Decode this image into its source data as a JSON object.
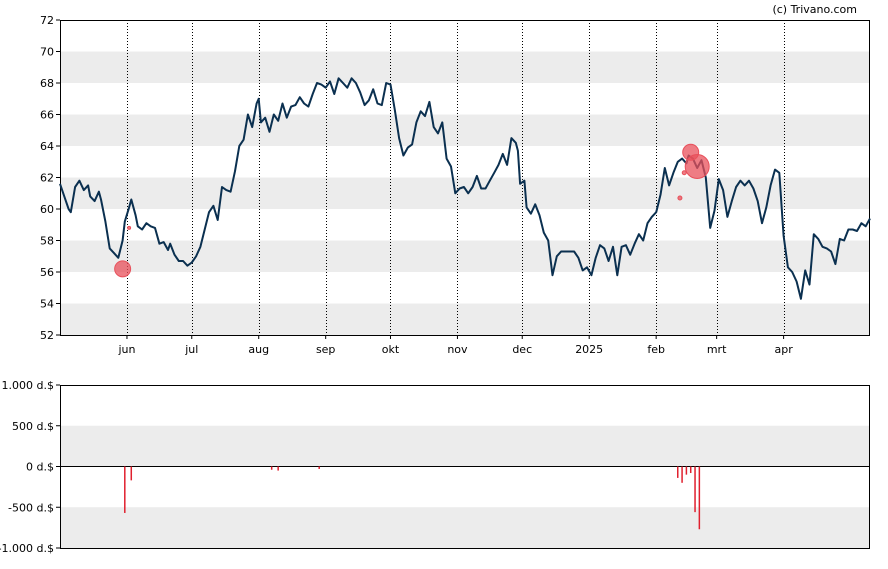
{
  "copyright": "(c) Trivano.com",
  "colors": {
    "price_line": "#0b3050",
    "band_grey": "#ececec",
    "bubble": "#e8505b",
    "volume_bar": "#e0202e"
  },
  "chart_data": [
    {
      "type": "line",
      "title": "",
      "xlabel": "",
      "ylabel": "",
      "ylim": [
        52,
        72
      ],
      "y_ticks": [
        "52",
        "54",
        "56",
        "58",
        "60",
        "62",
        "64",
        "66",
        "68",
        "70",
        "72"
      ],
      "x_ticks": [
        {
          "label": "jun",
          "day": 43
        },
        {
          "label": "jul",
          "day": 73
        },
        {
          "label": "aug",
          "day": 104
        },
        {
          "label": "sep",
          "day": 135
        },
        {
          "label": "okt",
          "day": 165
        },
        {
          "label": "nov",
          "day": 196
        },
        {
          "label": "dec",
          "day": 226
        },
        {
          "label": "2025",
          "day": 257
        },
        {
          "label": "feb",
          "day": 288
        },
        {
          "label": "mrt",
          "day": 316
        },
        {
          "label": "apr",
          "day": 347
        }
      ],
      "series": [
        {
          "points": [
            [
              12,
              61.6
            ],
            [
              14,
              60.8
            ],
            [
              16,
              60.0
            ],
            [
              17,
              59.8
            ],
            [
              19,
              61.4
            ],
            [
              21,
              61.8
            ],
            [
              23,
              61.2
            ],
            [
              25,
              61.5
            ],
            [
              26,
              60.8
            ],
            [
              28,
              60.5
            ],
            [
              30,
              61.1
            ],
            [
              31,
              60.6
            ],
            [
              33,
              59.2
            ],
            [
              35,
              57.5
            ],
            [
              37,
              57.2
            ],
            [
              39,
              56.9
            ],
            [
              41,
              58.0
            ],
            [
              42,
              59.2
            ],
            [
              44,
              60.1
            ],
            [
              45,
              60.6
            ],
            [
              47,
              59.6
            ],
            [
              48,
              58.9
            ],
            [
              50,
              58.7
            ],
            [
              52,
              59.1
            ],
            [
              54,
              58.9
            ],
            [
              56,
              58.8
            ],
            [
              58,
              57.8
            ],
            [
              60,
              57.9
            ],
            [
              62,
              57.4
            ],
            [
              63,
              57.8
            ],
            [
              65,
              57.1
            ],
            [
              67,
              56.7
            ],
            [
              69,
              56.7
            ],
            [
              71,
              56.4
            ],
            [
              73,
              56.6
            ],
            [
              75,
              57.0
            ],
            [
              77,
              57.6
            ],
            [
              79,
              58.7
            ],
            [
              81,
              59.8
            ],
            [
              83,
              60.2
            ],
            [
              85,
              59.3
            ],
            [
              87,
              61.4
            ],
            [
              89,
              61.2
            ],
            [
              91,
              61.1
            ],
            [
              93,
              62.4
            ],
            [
              95,
              64.0
            ],
            [
              97,
              64.4
            ],
            [
              99,
              66.0
            ],
            [
              101,
              65.2
            ],
            [
              103,
              66.7
            ],
            [
              104,
              67.0
            ],
            [
              105,
              65.5
            ],
            [
              107,
              65.8
            ],
            [
              109,
              64.9
            ],
            [
              111,
              66.0
            ],
            [
              113,
              65.6
            ],
            [
              115,
              66.7
            ],
            [
              117,
              65.8
            ],
            [
              119,
              66.5
            ],
            [
              121,
              66.6
            ],
            [
              123,
              67.1
            ],
            [
              125,
              66.7
            ],
            [
              127,
              66.5
            ],
            [
              129,
              67.3
            ],
            [
              131,
              68.0
            ],
            [
              133,
              67.9
            ],
            [
              135,
              67.7
            ],
            [
              137,
              68.1
            ],
            [
              139,
              67.3
            ],
            [
              141,
              68.3
            ],
            [
              143,
              68.0
            ],
            [
              145,
              67.7
            ],
            [
              147,
              68.3
            ],
            [
              149,
              68.0
            ],
            [
              151,
              67.4
            ],
            [
              153,
              66.6
            ],
            [
              155,
              66.9
            ],
            [
              157,
              67.6
            ],
            [
              159,
              66.7
            ],
            [
              161,
              66.6
            ],
            [
              163,
              68.0
            ],
            [
              165,
              67.9
            ],
            [
              167,
              66.3
            ],
            [
              169,
              64.5
            ],
            [
              171,
              63.4
            ],
            [
              173,
              63.9
            ],
            [
              175,
              64.1
            ],
            [
              177,
              65.5
            ],
            [
              179,
              66.2
            ],
            [
              181,
              65.9
            ],
            [
              183,
              66.8
            ],
            [
              185,
              65.2
            ],
            [
              187,
              64.8
            ],
            [
              189,
              65.5
            ],
            [
              191,
              63.2
            ],
            [
              193,
              62.7
            ],
            [
              195,
              61.0
            ],
            [
              197,
              61.3
            ],
            [
              199,
              61.4
            ],
            [
              201,
              61.0
            ],
            [
              203,
              61.4
            ],
            [
              205,
              62.1
            ],
            [
              207,
              61.3
            ],
            [
              209,
              61.3
            ],
            [
              211,
              61.8
            ],
            [
              213,
              62.3
            ],
            [
              215,
              62.8
            ],
            [
              217,
              63.5
            ],
            [
              219,
              62.8
            ],
            [
              221,
              64.5
            ],
            [
              223,
              64.2
            ],
            [
              224,
              63.7
            ],
            [
              225,
              61.6
            ],
            [
              227,
              61.8
            ],
            [
              228,
              60.1
            ],
            [
              230,
              59.7
            ],
            [
              232,
              60.3
            ],
            [
              234,
              59.6
            ],
            [
              236,
              58.5
            ],
            [
              238,
              58.0
            ],
            [
              240,
              55.8
            ],
            [
              242,
              57.0
            ],
            [
              244,
              57.3
            ],
            [
              246,
              57.3
            ],
            [
              248,
              57.3
            ],
            [
              250,
              57.3
            ],
            [
              252,
              56.9
            ],
            [
              254,
              56.1
            ],
            [
              256,
              56.3
            ],
            [
              258,
              55.8
            ],
            [
              260,
              56.9
            ],
            [
              262,
              57.7
            ],
            [
              264,
              57.5
            ],
            [
              266,
              56.7
            ],
            [
              268,
              57.6
            ],
            [
              270,
              55.8
            ],
            [
              272,
              57.6
            ],
            [
              274,
              57.7
            ],
            [
              276,
              57.1
            ],
            [
              278,
              57.8
            ],
            [
              280,
              58.4
            ],
            [
              282,
              58.0
            ],
            [
              284,
              59.1
            ],
            [
              286,
              59.5
            ],
            [
              288,
              59.8
            ],
            [
              290,
              60.9
            ],
            [
              292,
              62.6
            ],
            [
              294,
              61.5
            ],
            [
              296,
              62.3
            ],
            [
              298,
              63.0
            ],
            [
              300,
              63.2
            ],
            [
              302,
              62.9
            ],
            [
              303,
              63.4
            ],
            [
              305,
              63.2
            ],
            [
              307,
              62.6
            ],
            [
              309,
              63.1
            ],
            [
              311,
              62.0
            ],
            [
              313,
              58.8
            ],
            [
              315,
              59.9
            ],
            [
              317,
              61.9
            ],
            [
              319,
              61.2
            ],
            [
              321,
              59.5
            ],
            [
              323,
              60.5
            ],
            [
              325,
              61.4
            ],
            [
              327,
              61.8
            ],
            [
              329,
              61.5
            ],
            [
              331,
              61.8
            ],
            [
              333,
              61.3
            ],
            [
              335,
              60.5
            ],
            [
              337,
              59.1
            ],
            [
              339,
              60.1
            ],
            [
              341,
              61.5
            ],
            [
              343,
              62.5
            ],
            [
              345,
              62.3
            ],
            [
              347,
              58.3
            ],
            [
              349,
              56.3
            ],
            [
              351,
              56.0
            ],
            [
              353,
              55.4
            ],
            [
              355,
              54.3
            ],
            [
              357,
              56.1
            ],
            [
              359,
              55.2
            ],
            [
              361,
              58.4
            ],
            [
              363,
              58.1
            ],
            [
              365,
              57.6
            ],
            [
              367,
              57.5
            ],
            [
              369,
              57.3
            ],
            [
              371,
              56.5
            ],
            [
              373,
              58.1
            ],
            [
              375,
              58.0
            ],
            [
              377,
              58.7
            ],
            [
              379,
              58.7
            ],
            [
              381,
              58.6
            ],
            [
              383,
              59.1
            ],
            [
              385,
              58.9
            ],
            [
              387,
              59.4
            ]
          ]
        }
      ],
      "bubbles": [
        {
          "day": 41,
          "value": 56.2,
          "size": 8
        },
        {
          "day": 44,
          "value": 58.8,
          "size": 1
        },
        {
          "day": 299,
          "value": 60.7,
          "size": 2
        },
        {
          "day": 301,
          "value": 62.3,
          "size": 2
        },
        {
          "day": 304,
          "value": 63.6,
          "size": 8
        },
        {
          "day": 307,
          "value": 62.7,
          "size": 12
        }
      ]
    },
    {
      "type": "bar",
      "title": "",
      "xlabel": "",
      "ylabel": "",
      "ylim": [
        -1000,
        1000
      ],
      "y_ticks": [
        "-1.000 d.$",
        "-500 d.$",
        "0 d.$",
        "500 d.$",
        "1.000 d.$"
      ],
      "series": [
        {
          "points": [
            [
              42,
              -570
            ],
            [
              45,
              -170
            ],
            [
              110,
              -40
            ],
            [
              113,
              -50
            ],
            [
              132,
              -30
            ],
            [
              298,
              -140
            ],
            [
              300,
              -200
            ],
            [
              302,
              -100
            ],
            [
              304,
              -80
            ],
            [
              306,
              -560
            ],
            [
              308,
              -770
            ]
          ]
        }
      ]
    }
  ]
}
